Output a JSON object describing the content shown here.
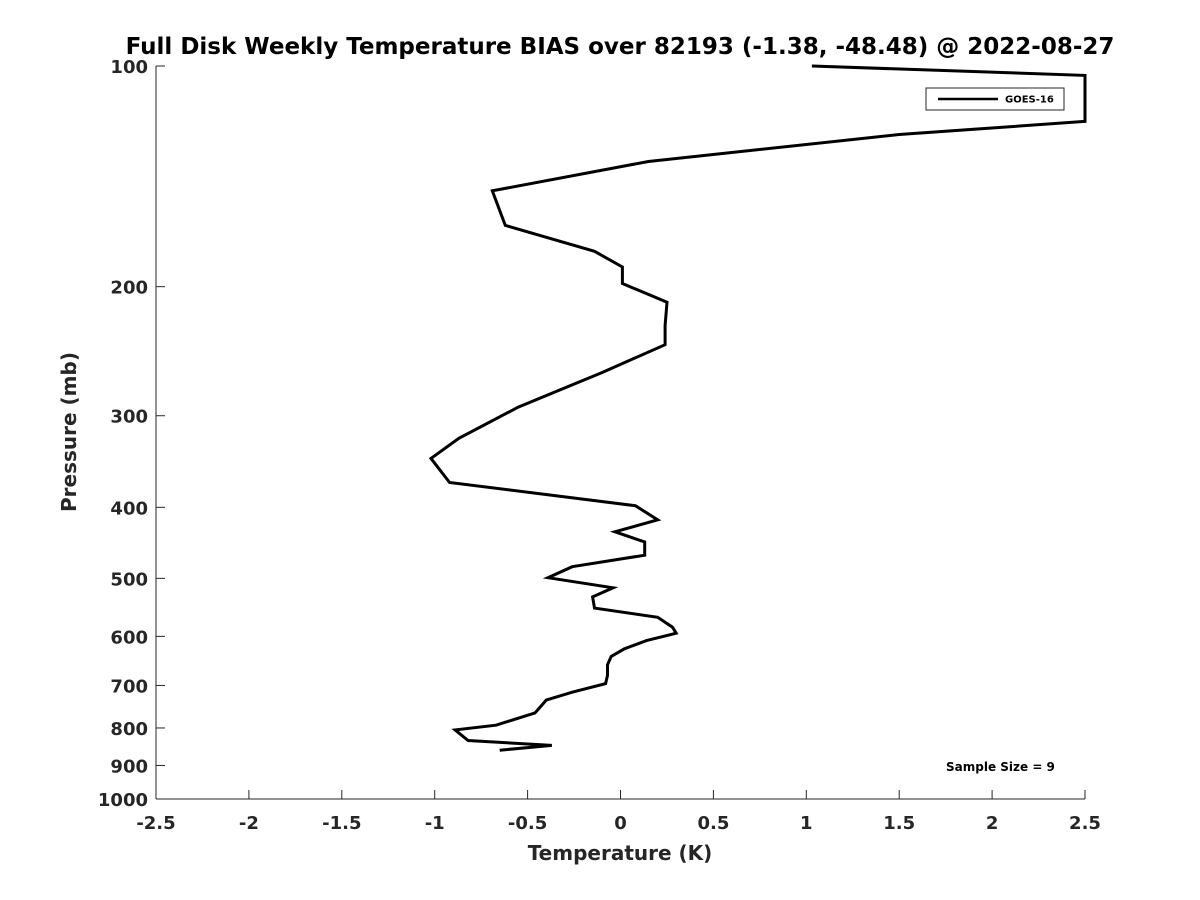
{
  "chart_data": {
    "type": "line",
    "title": "Full Disk Weekly Temperature BIAS over 82193 (-1.38, -48.48) @ 2022-08-27",
    "xlabel": "Temperature (K)",
    "ylabel": "Pressure (mb)",
    "xlim": [
      -2.5,
      2.5
    ],
    "ylim": [
      100,
      1000
    ],
    "y_scale": "log",
    "y_direction": "reversed",
    "grid": false,
    "legend_position": "top-right",
    "x_ticks": [
      -2.5,
      -2,
      -1.5,
      -1,
      -0.5,
      0,
      0.5,
      1,
      1.5,
      2,
      2.5
    ],
    "x_tick_labels": [
      "-2.5",
      "-2",
      "-1.5",
      "-1",
      "-0.5",
      "0",
      "0.5",
      "1",
      "1.5",
      "2",
      "2.5"
    ],
    "y_ticks": [
      100,
      200,
      300,
      400,
      500,
      600,
      700,
      800,
      900,
      1000
    ],
    "y_tick_labels": [
      "100",
      "200",
      "300",
      "400",
      "500",
      "600",
      "700",
      "800",
      "900",
      "1000"
    ],
    "annotation": "Sample Size = 9",
    "series": [
      {
        "name": "GOES-16",
        "color": "#000000",
        "points": [
          [
            1.03,
            100
          ],
          [
            2.5,
            103
          ],
          [
            2.5,
            119
          ],
          [
            1.5,
            124
          ],
          [
            0.15,
            135
          ],
          [
            -0.69,
            148
          ],
          [
            -0.62,
            165
          ],
          [
            -0.14,
            179
          ],
          [
            0.01,
            188
          ],
          [
            0.01,
            198
          ],
          [
            0.25,
            210
          ],
          [
            0.24,
            226
          ],
          [
            0.24,
            240
          ],
          [
            -0.1,
            262
          ],
          [
            -0.55,
            292
          ],
          [
            -0.87,
            322
          ],
          [
            -1.02,
            343
          ],
          [
            -0.92,
            370
          ],
          [
            0.08,
            398
          ],
          [
            0.2,
            416
          ],
          [
            -0.03,
            432
          ],
          [
            0.13,
            446
          ],
          [
            0.13,
            465
          ],
          [
            -0.26,
            482
          ],
          [
            -0.39,
            499
          ],
          [
            -0.04,
            515
          ],
          [
            -0.15,
            530
          ],
          [
            -0.14,
            549
          ],
          [
            0.2,
            565
          ],
          [
            0.28,
            583
          ],
          [
            0.3,
            594
          ],
          [
            0.14,
            608
          ],
          [
            0.02,
            624
          ],
          [
            -0.05,
            639
          ],
          [
            -0.07,
            656
          ],
          [
            -0.07,
            678
          ],
          [
            -0.08,
            696
          ],
          [
            -0.26,
            715
          ],
          [
            -0.4,
            733
          ],
          [
            -0.43,
            748
          ],
          [
            -0.46,
            763
          ],
          [
            -0.58,
            780
          ],
          [
            -0.67,
            793
          ],
          [
            -0.89,
            805
          ],
          [
            -0.82,
            832
          ],
          [
            -0.37,
            845
          ],
          [
            -0.65,
            858
          ]
        ]
      }
    ]
  }
}
